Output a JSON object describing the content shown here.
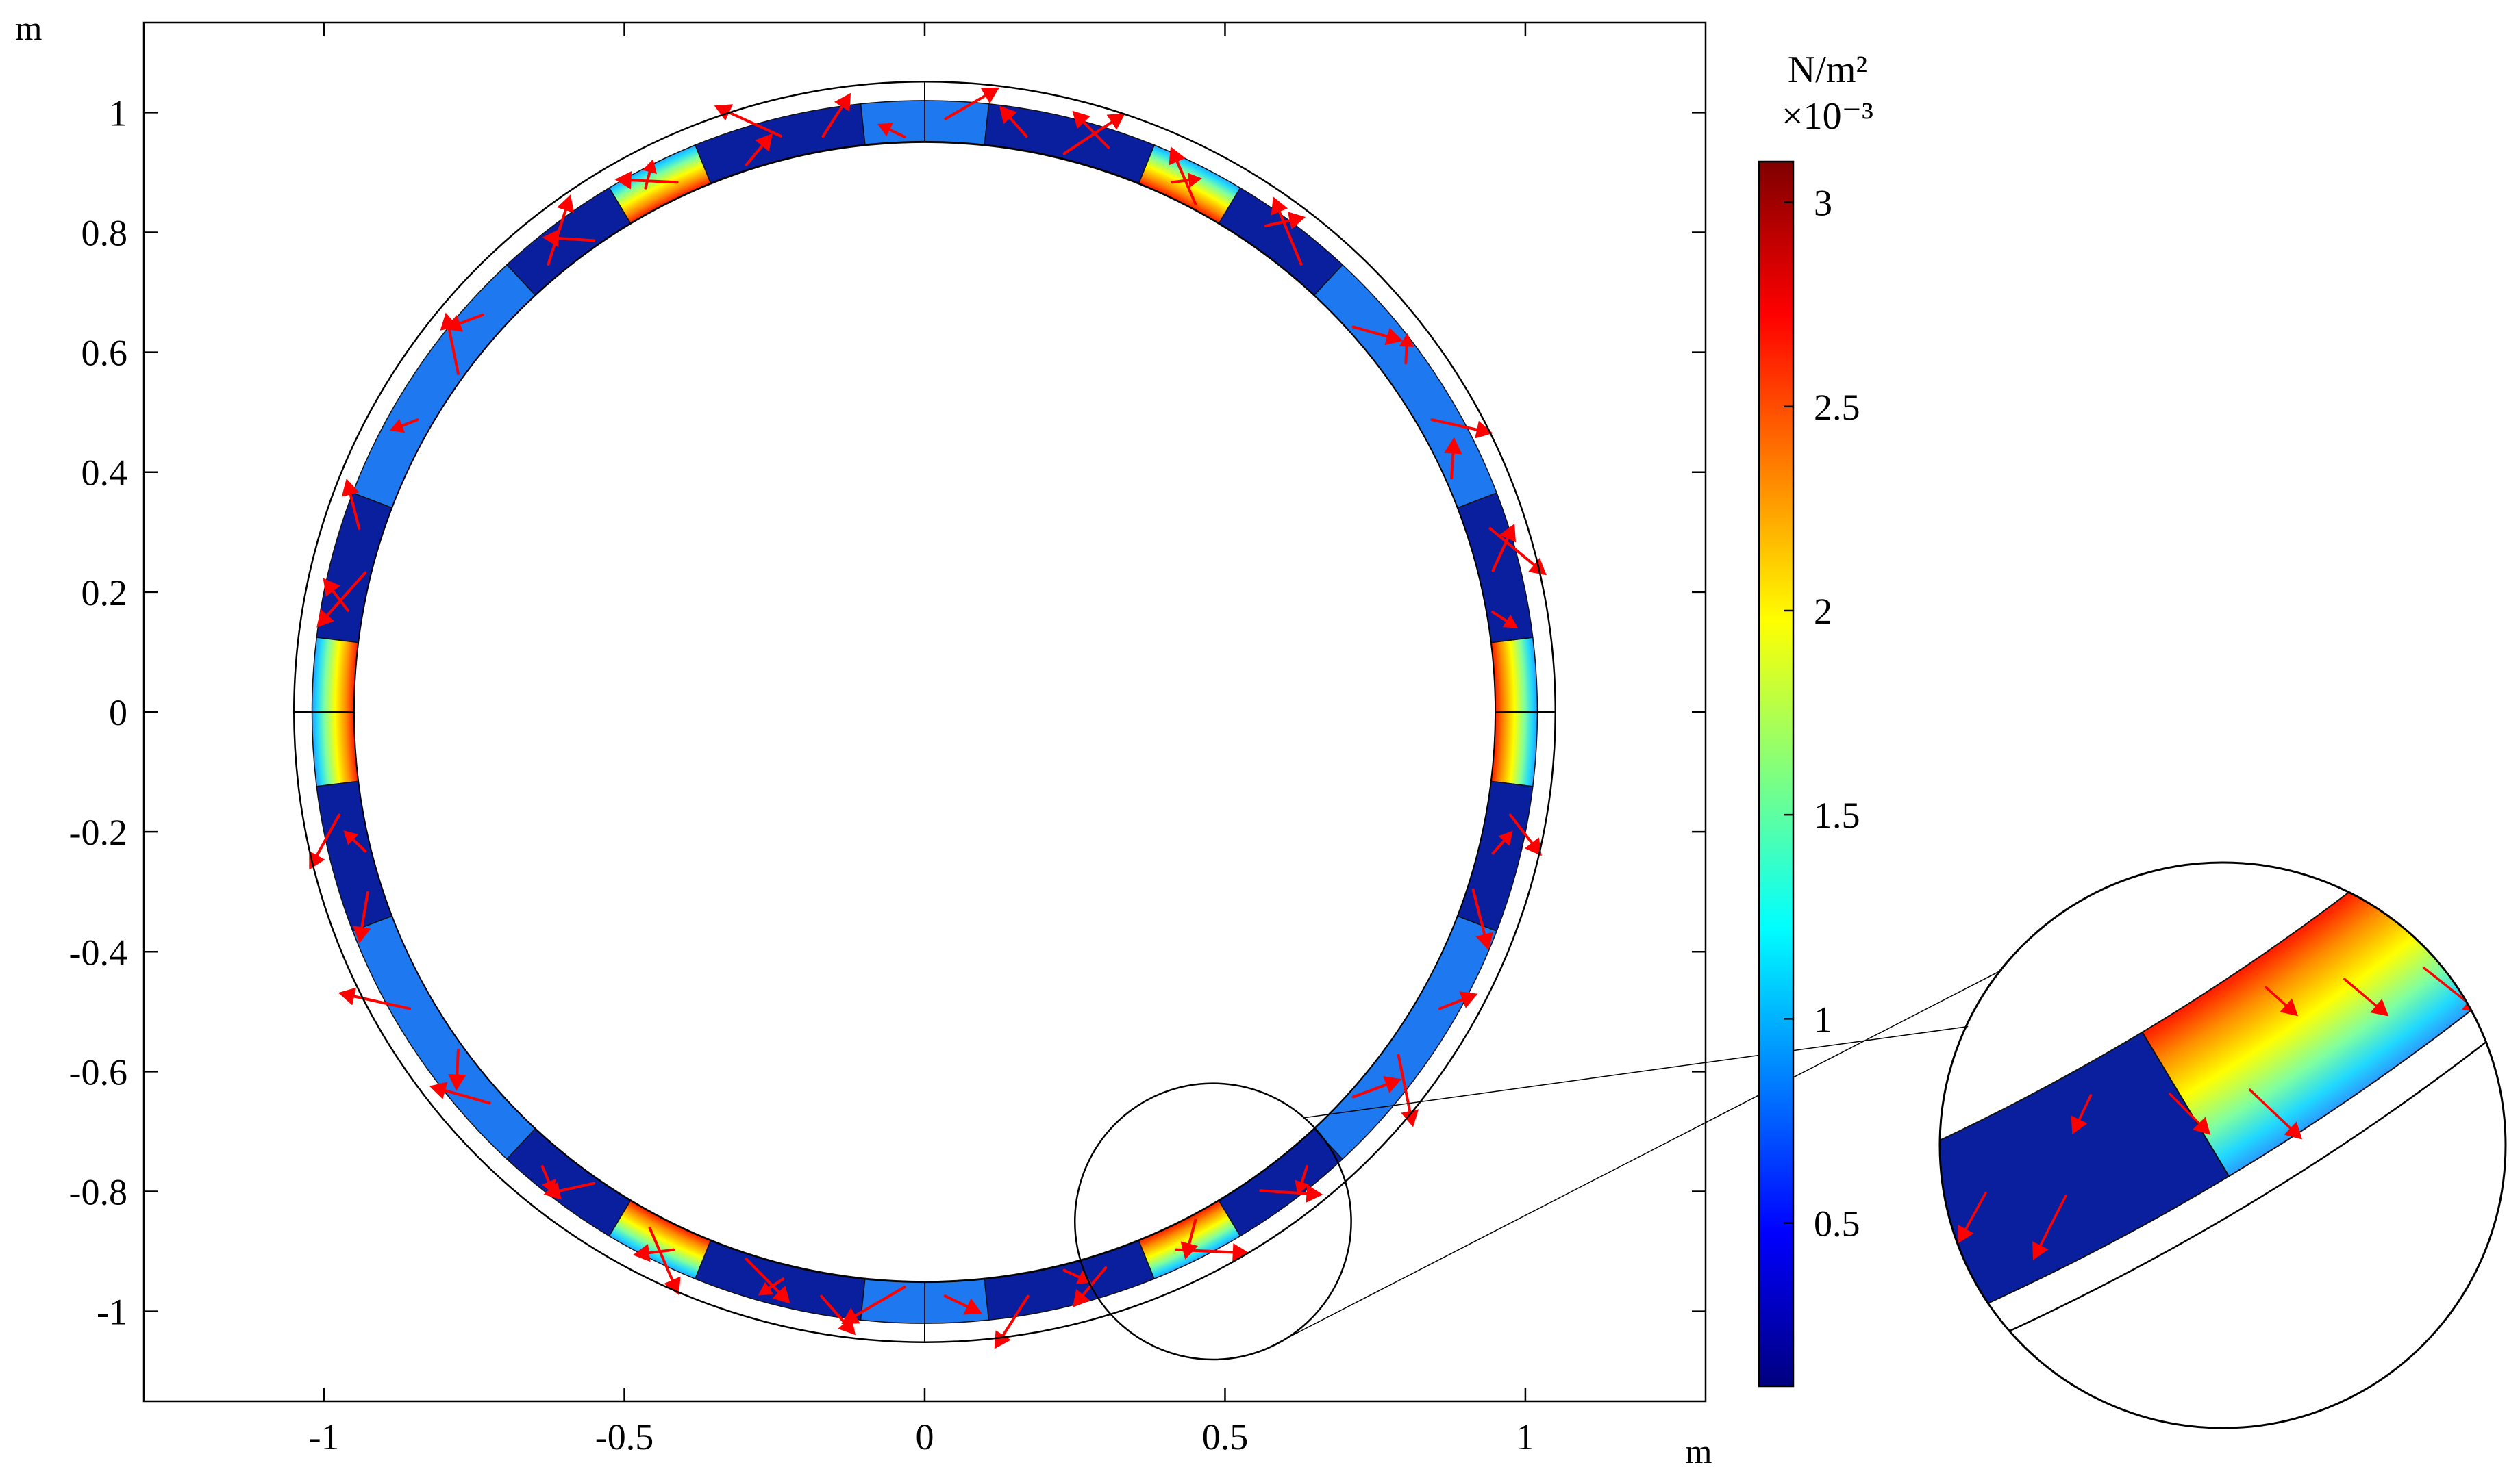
{
  "chart_data": {
    "type": "heatmap",
    "title": "",
    "plot": {
      "xlabel": "m",
      "ylabel": "m",
      "xlim": [
        -1.3,
        1.3
      ],
      "ylim": [
        -1.15,
        1.15
      ],
      "xticks": [
        -1,
        -0.5,
        0,
        0.5,
        1
      ],
      "xtick_labels": [
        "-1",
        "-0.5",
        "0",
        "0.5",
        "1"
      ],
      "yticks": [
        1,
        0.8,
        0.6,
        0.4,
        0.2,
        0,
        -0.2,
        -0.4,
        -0.6,
        -0.8,
        -1
      ],
      "ytick_labels": [
        "1",
        "0.8",
        "0.6",
        "0.4",
        "0.2",
        "0",
        "-0.2",
        "-0.4",
        "-0.6",
        "-0.8",
        "-1"
      ],
      "grid": false
    },
    "geometry": {
      "inner_radius": 0.95,
      "outer_radius": 1.02,
      "outer_boundary_radius": 1.05,
      "field_segments": [
        {
          "from_deg": -7,
          "to_deg": 7,
          "level": "high"
        },
        {
          "from_deg": 7,
          "to_deg": 21,
          "level": "low"
        },
        {
          "from_deg": 21,
          "to_deg": 47,
          "level": "medium"
        },
        {
          "from_deg": 47,
          "to_deg": 59,
          "level": "low"
        },
        {
          "from_deg": 59,
          "to_deg": 68,
          "level": "high"
        },
        {
          "from_deg": 68,
          "to_deg": 84,
          "level": "low"
        },
        {
          "from_deg": 84,
          "to_deg": 96,
          "level": "medium"
        },
        {
          "from_deg": 96,
          "to_deg": 112,
          "level": "low"
        },
        {
          "from_deg": 112,
          "to_deg": 121,
          "level": "high"
        },
        {
          "from_deg": 121,
          "to_deg": 133,
          "level": "low"
        },
        {
          "from_deg": 133,
          "to_deg": 159,
          "level": "medium"
        },
        {
          "from_deg": 159,
          "to_deg": 173,
          "level": "low"
        },
        {
          "from_deg": 173,
          "to_deg": 187,
          "level": "high"
        },
        {
          "from_deg": 187,
          "to_deg": 201,
          "level": "low"
        },
        {
          "from_deg": 201,
          "to_deg": 227,
          "level": "medium"
        },
        {
          "from_deg": 227,
          "to_deg": 239,
          "level": "low"
        },
        {
          "from_deg": 239,
          "to_deg": 248,
          "level": "high"
        },
        {
          "from_deg": 248,
          "to_deg": 264,
          "level": "low"
        },
        {
          "from_deg": 264,
          "to_deg": 276,
          "level": "medium"
        },
        {
          "from_deg": 276,
          "to_deg": 292,
          "level": "low"
        },
        {
          "from_deg": 292,
          "to_deg": 301,
          "level": "high"
        },
        {
          "from_deg": 301,
          "to_deg": 313,
          "level": "low"
        },
        {
          "from_deg": 313,
          "to_deg": 339,
          "level": "medium"
        },
        {
          "from_deg": 339,
          "to_deg": 353,
          "level": "low"
        }
      ],
      "arrow_angles_deg": [
        10,
        14,
        18,
        24,
        30,
        36,
        42,
        50,
        55,
        62,
        65,
        72,
        76,
        80,
        88,
        92,
        100,
        104,
        108,
        115,
        118,
        125,
        130,
        138,
        144,
        150,
        162,
        166,
        170,
        190,
        194,
        198,
        210,
        216,
        222,
        230,
        235,
        242,
        245,
        252,
        256,
        260,
        268,
        272,
        280,
        284,
        288,
        295,
        298,
        305,
        310,
        318,
        324,
        330,
        342,
        346,
        350
      ]
    },
    "zoom_inset": {
      "center": [
        0.48,
        -0.85
      ],
      "radius": 0.23,
      "from_deg": 300,
      "to_deg": 322
    },
    "colorbar": {
      "title": "N/m²",
      "exponent_label": "×10⁻³",
      "range": [
        0.1,
        3.1
      ],
      "ticks": [
        0.5,
        1,
        1.5,
        2,
        2.5,
        3
      ],
      "tick_labels": [
        "0.5",
        "1",
        "1.5",
        "2",
        "2.5",
        "3"
      ],
      "colormap": "rainbow",
      "colors": [
        "#00007f",
        "#0000ff",
        "#007fff",
        "#00ffff",
        "#7fff7f",
        "#ffff00",
        "#ff7f00",
        "#ff0000",
        "#7f0000"
      ]
    },
    "arrow_color": "#ff0000",
    "low_field_color": "#0a1f9e",
    "medium_field_color": "#1e78f0"
  }
}
